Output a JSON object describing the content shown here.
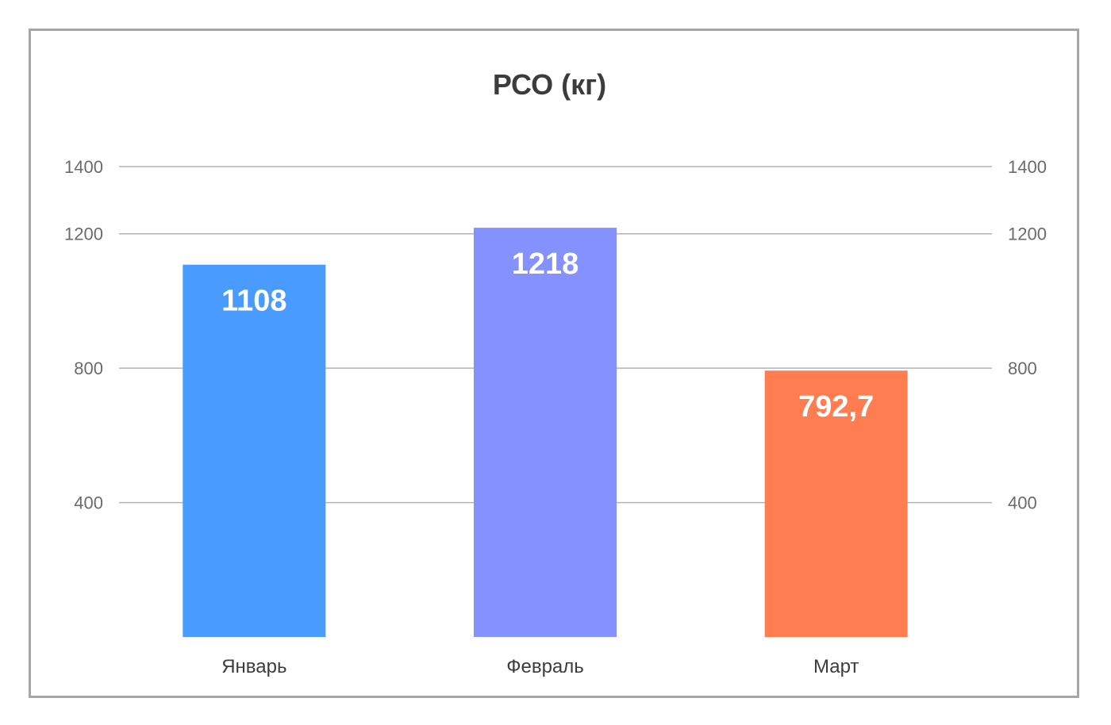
{
  "chart_data": {
    "type": "bar",
    "title": "РСО (кг)",
    "categories": [
      "Январь",
      "Февраль",
      "Март"
    ],
    "values": [
      1108,
      1218,
      792.7
    ],
    "value_labels": [
      "1108",
      "1218",
      "792,7"
    ],
    "colors": [
      "#4a9bff",
      "#8591ff",
      "#ff7d50"
    ],
    "y_ticks": [
      400,
      800,
      1200,
      1400
    ],
    "ylim": [
      0,
      1400
    ],
    "grid": true,
    "legend": "none",
    "axes": "left-and-right"
  }
}
